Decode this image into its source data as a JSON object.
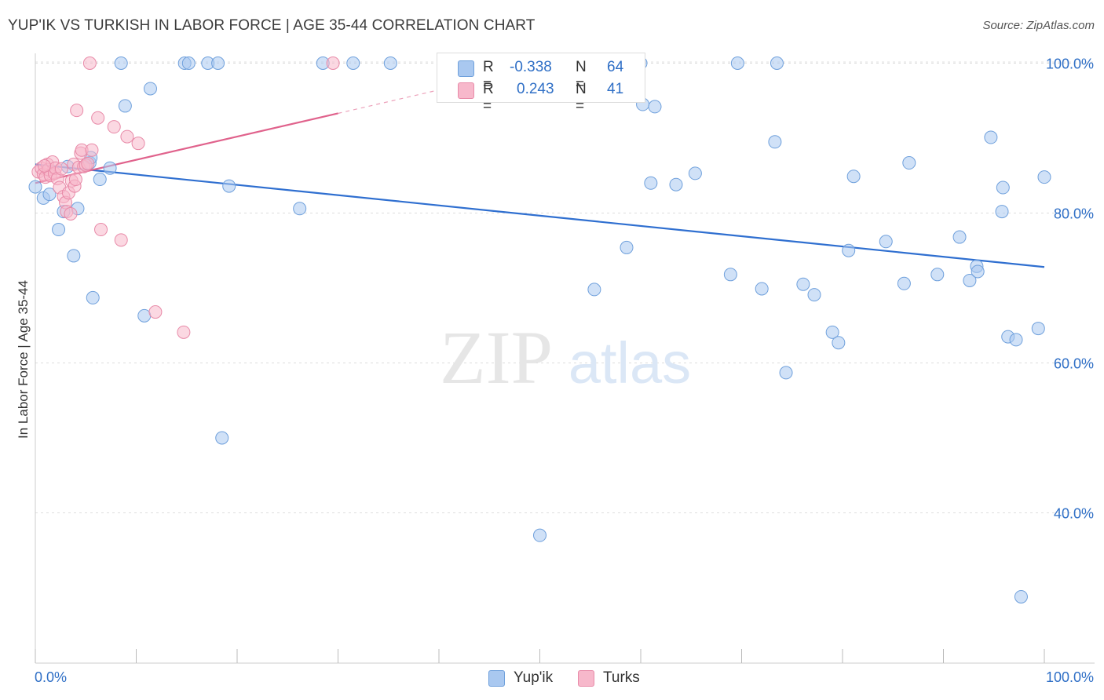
{
  "title": "YUP'IK VS TURKISH IN LABOR FORCE | AGE 35-44 CORRELATION CHART",
  "source": "Source: ZipAtlas.com",
  "watermark": {
    "zip": "ZIP",
    "atlas": "atlas"
  },
  "legend": {
    "rows": [
      {
        "r_label": "R =",
        "r_value": "-0.338",
        "n_label": "N =",
        "n_value": "64",
        "color": "#a9c8f0",
        "border": "#6fa0dc"
      },
      {
        "r_label": "R =",
        "r_value": "0.243",
        "n_label": "N =",
        "n_value": "41",
        "color": "#f7b8cb",
        "border": "#e88aa8"
      }
    ]
  },
  "bottom_legend": [
    {
      "label": "Yup'ik",
      "color": "#a9c8f0",
      "border": "#6fa0dc"
    },
    {
      "label": "Turks",
      "color": "#f7b8cb",
      "border": "#e88aa8"
    }
  ],
  "chart_data": {
    "type": "scatter",
    "title": "YUP'IK VS TURKISH IN LABOR FORCE | AGE 35-44 CORRELATION CHART",
    "xlabel": "",
    "ylabel": "In Labor Force | Age 35-44",
    "xlim": [
      0,
      100
    ],
    "ylim": [
      20,
      102
    ],
    "x_tick_labels": {
      "left": "0.0%",
      "right": "100.0%"
    },
    "y_ticks": [
      {
        "value": 40,
        "label": "40.0%"
      },
      {
        "value": 60,
        "label": "60.0%"
      },
      {
        "value": 80,
        "label": "80.0%"
      },
      {
        "value": 100,
        "label": "100.0%"
      }
    ],
    "grid": true,
    "legend_position": "top-center",
    "series": [
      {
        "name": "Yup'ik",
        "color": "#a9c8f0",
        "edge": "#6fa0dc",
        "trend": {
          "x0": 0,
          "y0": 86.5,
          "x1": 100,
          "y1": 72.8,
          "color": "#2f6fd0"
        },
        "points": [
          [
            0.8,
            82.0
          ],
          [
            1.4,
            82.5
          ],
          [
            2.3,
            77.8
          ],
          [
            2.8,
            80.2
          ],
          [
            3.2,
            86.2
          ],
          [
            3.8,
            74.3
          ],
          [
            4.2,
            80.6
          ],
          [
            5.4,
            86.7
          ],
          [
            5.5,
            87.4
          ],
          [
            5.7,
            68.7
          ],
          [
            6.4,
            84.5
          ],
          [
            7.4,
            86.0
          ],
          [
            8.5,
            100.0
          ],
          [
            8.9,
            94.3
          ],
          [
            10.8,
            66.3
          ],
          [
            11.4,
            96.6
          ],
          [
            14.8,
            100.0
          ],
          [
            15.2,
            100.0
          ],
          [
            17.1,
            100.0
          ],
          [
            18.1,
            100.0
          ],
          [
            18.5,
            50.0
          ],
          [
            19.2,
            83.6
          ],
          [
            26.2,
            80.6
          ],
          [
            28.5,
            100.0
          ],
          [
            31.5,
            100.0
          ],
          [
            35.2,
            100.0
          ],
          [
            50.0,
            37.0
          ],
          [
            55.4,
            69.8
          ],
          [
            58.6,
            75.4
          ],
          [
            60.0,
            100.0
          ],
          [
            60.2,
            94.5
          ],
          [
            61.0,
            84.0
          ],
          [
            61.4,
            94.2
          ],
          [
            63.5,
            83.8
          ],
          [
            65.4,
            85.3
          ],
          [
            68.9,
            71.8
          ],
          [
            69.6,
            100.0
          ],
          [
            72.0,
            69.9
          ],
          [
            73.3,
            89.5
          ],
          [
            73.5,
            100.0
          ],
          [
            74.4,
            58.7
          ],
          [
            76.1,
            70.5
          ],
          [
            77.2,
            69.1
          ],
          [
            79.0,
            64.1
          ],
          [
            79.6,
            62.7
          ],
          [
            80.6,
            75.0
          ],
          [
            81.1,
            84.9
          ],
          [
            84.3,
            76.2
          ],
          [
            86.1,
            70.6
          ],
          [
            86.6,
            86.7
          ],
          [
            89.4,
            71.8
          ],
          [
            91.6,
            76.8
          ],
          [
            92.6,
            71.0
          ],
          [
            93.3,
            72.9
          ],
          [
            93.4,
            72.2
          ],
          [
            94.7,
            90.1
          ],
          [
            95.8,
            80.2
          ],
          [
            95.9,
            83.4
          ],
          [
            96.4,
            63.5
          ],
          [
            97.2,
            63.1
          ],
          [
            97.7,
            28.8
          ],
          [
            99.4,
            64.6
          ],
          [
            100.0,
            84.8
          ],
          [
            0.0,
            83.5
          ]
        ]
      },
      {
        "name": "Turks",
        "color": "#f7b8cb",
        "edge": "#e88aa8",
        "trend": {
          "x0": 0,
          "y0": 84.0,
          "x1": 30,
          "y1": 93.3,
          "dash_to_x": 45,
          "dash_to_y": 98.0,
          "color": "#e0628c"
        },
        "points": [
          [
            0.3,
            85.5
          ],
          [
            0.6,
            86.0
          ],
          [
            0.8,
            85.2
          ],
          [
            1.0,
            84.8
          ],
          [
            1.2,
            86.5
          ],
          [
            1.3,
            85.8
          ],
          [
            1.5,
            85.0
          ],
          [
            1.7,
            86.8
          ],
          [
            1.9,
            85.3
          ],
          [
            2.0,
            86.0
          ],
          [
            2.2,
            84.6
          ],
          [
            2.4,
            83.4
          ],
          [
            2.6,
            85.9
          ],
          [
            2.8,
            82.2
          ],
          [
            3.0,
            81.4
          ],
          [
            3.1,
            80.2
          ],
          [
            3.3,
            82.7
          ],
          [
            3.5,
            79.9
          ],
          [
            3.6,
            84.3
          ],
          [
            3.8,
            86.5
          ],
          [
            3.9,
            83.6
          ],
          [
            4.0,
            84.5
          ],
          [
            4.1,
            93.7
          ],
          [
            4.3,
            86.1
          ],
          [
            4.5,
            88.0
          ],
          [
            4.6,
            88.4
          ],
          [
            4.8,
            86.2
          ],
          [
            5.0,
            86.4
          ],
          [
            5.2,
            86.6
          ],
          [
            5.4,
            100.0
          ],
          [
            5.6,
            88.4
          ],
          [
            6.2,
            92.7
          ],
          [
            6.5,
            77.8
          ],
          [
            7.8,
            91.5
          ],
          [
            8.5,
            76.4
          ],
          [
            9.1,
            90.2
          ],
          [
            10.2,
            89.3
          ],
          [
            11.9,
            66.8
          ],
          [
            14.7,
            64.1
          ],
          [
            29.5,
            100.0
          ],
          [
            0.9,
            86.3
          ]
        ]
      }
    ]
  }
}
